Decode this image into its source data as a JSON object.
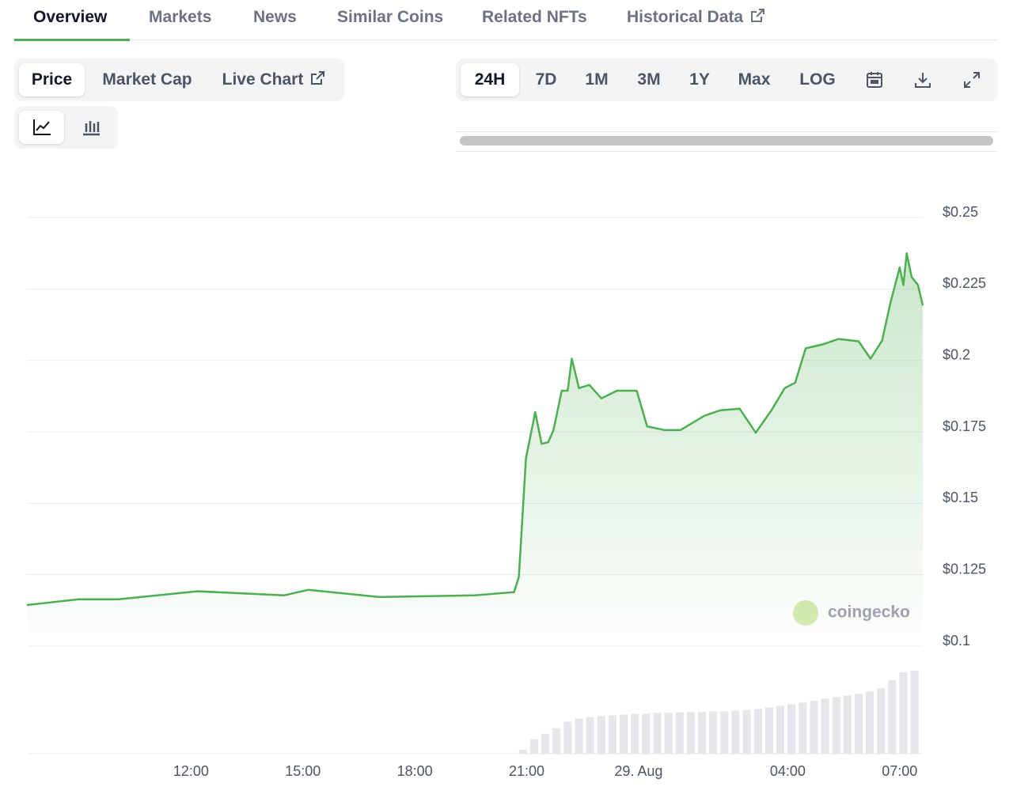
{
  "tabs": [
    "Overview",
    "Markets",
    "News",
    "Similar Coins",
    "Related NFTs",
    "Historical Data"
  ],
  "view_buttons": [
    "Price",
    "Market Cap",
    "Live Chart"
  ],
  "range_buttons": [
    "24H",
    "7D",
    "1M",
    "3M",
    "1Y",
    "Max",
    "LOG"
  ],
  "chart_data": {
    "type": "line",
    "grid": true,
    "watermark": "coingecko",
    "series": [
      {
        "color": "#4caf50",
        "x": [
          7.6,
          8.99,
          10.05,
          12.17,
          14.5,
          15.14,
          17.05,
          19.6,
          20.66,
          20.79,
          20.98,
          21.23,
          21.4,
          21.58,
          21.72,
          21.94,
          22.1,
          22.21,
          22.4,
          22.68,
          23.0,
          23.42,
          23.95,
          24.23,
          24.7,
          25.12,
          25.76,
          26.18,
          26.71,
          27.14,
          27.56,
          27.92,
          28.2,
          28.48,
          28.94,
          29.36,
          29.9,
          30.22,
          30.53,
          30.75,
          31.0,
          31.1,
          31.19,
          31.32,
          31.49,
          31.62
        ],
        "values": [
          0.1144,
          0.1164,
          0.1164,
          0.1192,
          0.1178,
          0.1197,
          0.1172,
          0.1178,
          0.1189,
          0.1242,
          0.1658,
          0.1819,
          0.1708,
          0.1714,
          0.1756,
          0.1894,
          0.1894,
          0.2006,
          0.1903,
          0.1914,
          0.1867,
          0.1894,
          0.1894,
          0.1769,
          0.1756,
          0.1756,
          0.1806,
          0.1825,
          0.1831,
          0.1747,
          0.1825,
          0.1903,
          0.1922,
          0.2042,
          0.2056,
          0.2075,
          0.2067,
          0.2006,
          0.2069,
          0.22,
          0.2325,
          0.2264,
          0.2375,
          0.2292,
          0.2264,
          0.2192
        ]
      }
    ],
    "volume": {
      "color": "#e4e6ea",
      "x": [
        20.9,
        21.2,
        21.5,
        21.8,
        22.1,
        22.4,
        22.7,
        23.0,
        23.3,
        23.6,
        23.9,
        24.2,
        24.5,
        24.8,
        25.1,
        25.4,
        25.7,
        26.0,
        26.3,
        26.6,
        26.9,
        27.2,
        27.5,
        27.8,
        28.1,
        28.4,
        28.7,
        29.0,
        29.3,
        29.6,
        29.9,
        30.2,
        30.5,
        30.8,
        31.1,
        31.4
      ],
      "values": [
        5,
        18,
        25,
        32,
        40,
        44,
        46,
        47,
        48,
        49,
        50,
        50,
        51,
        51,
        52,
        52,
        52,
        53,
        53,
        54,
        55,
        56,
        58,
        60,
        62,
        64,
        66,
        69,
        71,
        73,
        75,
        78,
        82,
        92,
        102,
        104
      ]
    },
    "xlim": [
      7.6,
      31.62
    ],
    "xticks": [
      {
        "value": 12,
        "label": "12:00"
      },
      {
        "value": 15,
        "label": "15:00"
      },
      {
        "value": 18,
        "label": "18:00"
      },
      {
        "value": 21,
        "label": "21:00"
      },
      {
        "value": 24,
        "label": "29. Aug"
      },
      {
        "value": 28,
        "label": "04:00"
      },
      {
        "value": 31,
        "label": "07:00"
      }
    ],
    "ylim": [
      0.1,
      0.25
    ],
    "yticks": [
      {
        "value": 0.1,
        "label": "$0.1"
      },
      {
        "value": 0.125,
        "label": "$0.125"
      },
      {
        "value": 0.15,
        "label": "$0.15"
      },
      {
        "value": 0.175,
        "label": "$0.175"
      },
      {
        "value": 0.2,
        "label": "$0.2"
      },
      {
        "value": 0.225,
        "label": "$0.225"
      },
      {
        "value": 0.25,
        "label": "$0.25"
      }
    ]
  }
}
